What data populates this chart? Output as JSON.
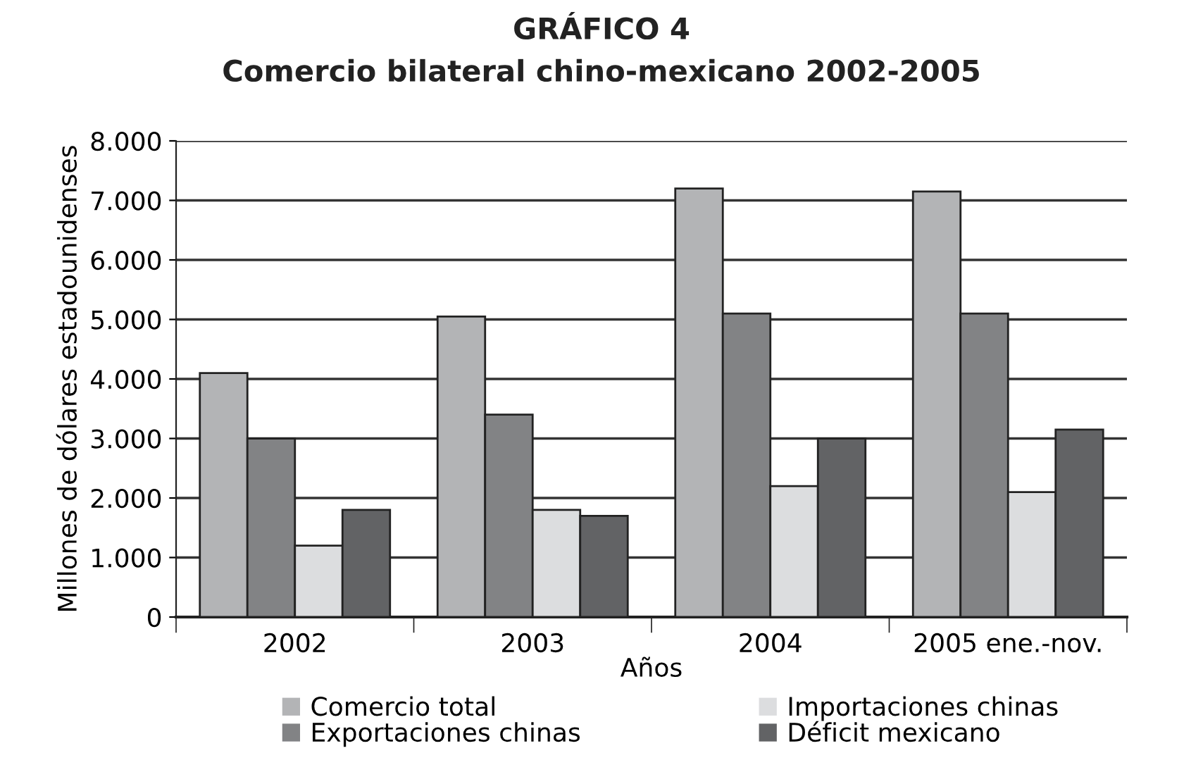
{
  "chart_data": {
    "type": "bar",
    "title": "GRÁFICO 4",
    "subtitle": "Comercio bilateral chino-mexicano 2002-2005",
    "xlabel": "Años",
    "ylabel": "Millones de dólares estadounidenses",
    "categories": [
      "2002",
      "2003",
      "2004",
      "2005 ene.-nov."
    ],
    "series": [
      {
        "name": "Comercio total",
        "color": "#b3b4b6",
        "values": [
          4100,
          5050,
          7200,
          7150
        ]
      },
      {
        "name": "Exportaciones chinas",
        "color": "#828385",
        "values": [
          3000,
          3400,
          5100,
          5100
        ]
      },
      {
        "name": "Importaciones chinas",
        "color": "#dcdddf",
        "values": [
          1200,
          1800,
          2200,
          2100
        ]
      },
      {
        "name": "Déficit mexicano",
        "color": "#626365",
        "values": [
          1800,
          1700,
          3000,
          3150
        ]
      }
    ],
    "ylim": [
      0,
      8000
    ],
    "yticks": [
      {
        "value": 0,
        "label": "0"
      },
      {
        "value": 1000,
        "label": "1.000"
      },
      {
        "value": 2000,
        "label": "2.000"
      },
      {
        "value": 3000,
        "label": "3.000"
      },
      {
        "value": 4000,
        "label": "4.000"
      },
      {
        "value": 5000,
        "label": "5.000"
      },
      {
        "value": 6000,
        "label": "6.000"
      },
      {
        "value": 7000,
        "label": "7.000"
      },
      {
        "value": 8000,
        "label": "8.000"
      }
    ],
    "grid": "y",
    "legend": "bottom"
  }
}
